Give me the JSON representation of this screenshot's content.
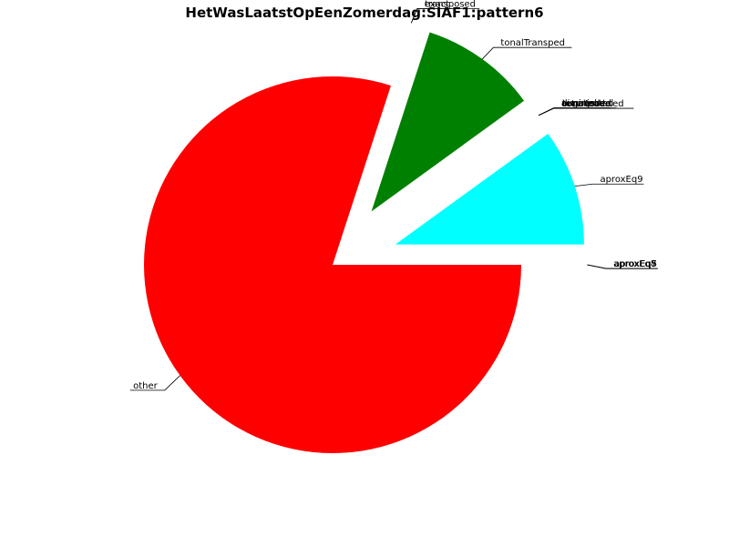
{
  "chart_data": {
    "type": "pie",
    "title": "HetWasLaatstOpEenZomerdag:SIAF1:pattern6",
    "start_angle_deg": 0,
    "direction": "clockwise",
    "slices": [
      {
        "label": "other",
        "value": 0.8,
        "color": "#ff0000",
        "explode": 0
      },
      {
        "label": "exact",
        "value": 0.0,
        "color": "#0000ff",
        "explode": 0.35
      },
      {
        "label": "transposed",
        "value": 0.0,
        "color": "#ffa500",
        "explode": 0.35
      },
      {
        "label": "tonalTransped",
        "value": 0.1,
        "color": "#008000",
        "explode": 0.35
      },
      {
        "label": "augmented",
        "value": 0.0,
        "color": "#ff00ff",
        "explode": 0.35
      },
      {
        "label": "diminished",
        "value": 0.0,
        "color": "#800080",
        "explode": 0.35
      },
      {
        "label": "inverted",
        "value": 0.0,
        "color": "#ffff00",
        "explode": 0.35
      },
      {
        "label": "retrograde",
        "value": 0.0,
        "color": "#808080",
        "explode": 0.35
      },
      {
        "label": "tonalInverted",
        "value": 0.0,
        "color": "#a52a2a",
        "explode": 0.35
      },
      {
        "label": "aproxEq9",
        "value": 0.1,
        "color": "#00ffff",
        "explode": 0.35
      },
      {
        "label": "aproxEq8",
        "value": 0.0,
        "color": "#000000",
        "explode": 0.35
      },
      {
        "label": "aproxEq7",
        "value": 0.0,
        "color": "#ffc0cb",
        "explode": 0.35
      },
      {
        "label": "aproxEq5",
        "value": 0.0,
        "color": "#00ff00",
        "explode": 0.35
      }
    ]
  }
}
